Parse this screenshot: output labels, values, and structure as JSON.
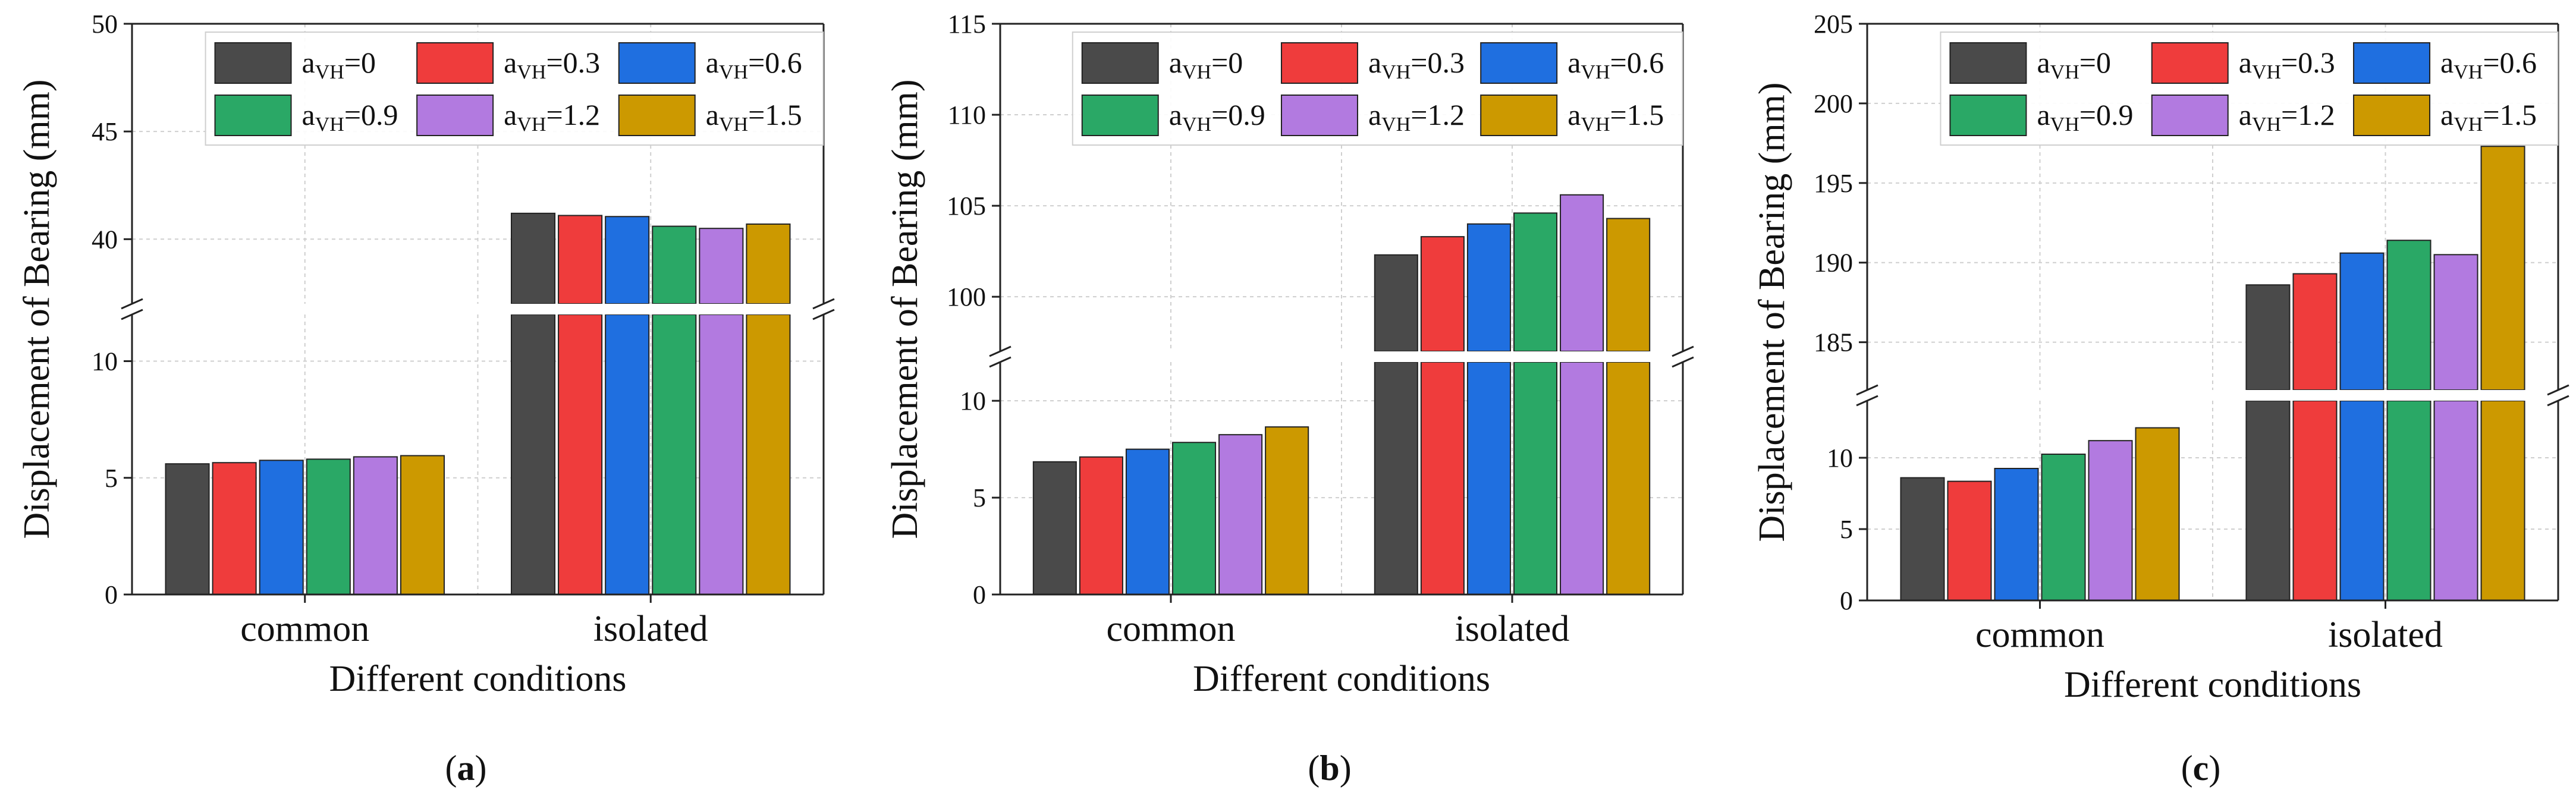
{
  "figure": {
    "panel_letters": [
      "a",
      "b",
      "c"
    ],
    "series_colors": {
      "aVH=0": "#4a4a4a",
      "aVH=0.3": "#ef3c3c",
      "aVH=0.6": "#1f6fe0",
      "aVH=0.9": "#2aa866",
      "aVH=1.2": "#b27ae0",
      "aVH=1.5": "#cc9900"
    }
  },
  "chart_data": [
    {
      "panel": "a",
      "type": "bar",
      "broken_axis": true,
      "xlabel": "Different conditions",
      "ylabel": "Displacement of Bearing (mm)",
      "categories": [
        "common",
        "isolated"
      ],
      "lower_ylim": [
        0,
        12
      ],
      "lower_ticks": [
        "0",
        "5",
        "10"
      ],
      "upper_ylim": [
        37,
        50
      ],
      "upper_ticks": [
        "40",
        "45",
        "50"
      ],
      "grid": true,
      "legend": "top, 3 columns",
      "series": [
        {
          "name": "aVH=0",
          "label_main": "a",
          "label_sub": "VH",
          "label_rest": "=0",
          "color": "#4a4a4a",
          "values": [
            5.6,
            41.2
          ]
        },
        {
          "name": "aVH=0.3",
          "label_main": "a",
          "label_sub": "VH",
          "label_rest": "=0.3",
          "color": "#ef3c3c",
          "values": [
            5.65,
            41.1
          ]
        },
        {
          "name": "aVH=0.6",
          "label_main": "a",
          "label_sub": "VH",
          "label_rest": "=0.6",
          "color": "#1f6fe0",
          "values": [
            5.75,
            41.05
          ]
        },
        {
          "name": "aVH=0.9",
          "label_main": "a",
          "label_sub": "VH",
          "label_rest": "=0.9",
          "color": "#2aa866",
          "values": [
            5.8,
            40.6
          ]
        },
        {
          "name": "aVH=1.2",
          "label_main": "a",
          "label_sub": "VH",
          "label_rest": "=1.2",
          "color": "#b27ae0",
          "values": [
            5.9,
            40.5
          ]
        },
        {
          "name": "aVH=1.5",
          "label_main": "a",
          "label_sub": "VH",
          "label_rest": "=1.5",
          "color": "#cc9900",
          "values": [
            5.95,
            40.7
          ]
        }
      ]
    },
    {
      "panel": "b",
      "type": "bar",
      "broken_axis": true,
      "xlabel": "Different conditions",
      "ylabel": "Displacement of Bearing (mm)",
      "categories": [
        "common",
        "isolated"
      ],
      "lower_ylim": [
        0,
        12
      ],
      "lower_ticks": [
        "0",
        "5",
        "10"
      ],
      "upper_ylim": [
        97,
        115
      ],
      "upper_ticks": [
        "100",
        "105",
        "110",
        "115"
      ],
      "grid": true,
      "legend": "top, 3 columns",
      "series": [
        {
          "name": "aVH=0",
          "label_main": "a",
          "label_sub": "VH",
          "label_rest": "=0",
          "color": "#4a4a4a",
          "values": [
            6.85,
            102.3
          ]
        },
        {
          "name": "aVH=0.3",
          "label_main": "a",
          "label_sub": "VH",
          "label_rest": "=0.3",
          "color": "#ef3c3c",
          "values": [
            7.1,
            103.3
          ]
        },
        {
          "name": "aVH=0.6",
          "label_main": "a",
          "label_sub": "VH",
          "label_rest": "=0.6",
          "color": "#1f6fe0",
          "values": [
            7.5,
            104.0
          ]
        },
        {
          "name": "aVH=0.9",
          "label_main": "a",
          "label_sub": "VH",
          "label_rest": "=0.9",
          "color": "#2aa866",
          "values": [
            7.85,
            104.6
          ]
        },
        {
          "name": "aVH=1.2",
          "label_main": "a",
          "label_sub": "VH",
          "label_rest": "=1.2",
          "color": "#b27ae0",
          "values": [
            8.25,
            105.6
          ]
        },
        {
          "name": "aVH=1.5",
          "label_main": "a",
          "label_sub": "VH",
          "label_rest": "=1.5",
          "color": "#cc9900",
          "values": [
            8.65,
            104.3
          ]
        }
      ]
    },
    {
      "panel": "c",
      "type": "bar",
      "broken_axis": true,
      "xlabel": "Different conditions",
      "ylabel": "Displacement of Bearing (mm)",
      "categories": [
        "common",
        "isolated"
      ],
      "lower_ylim": [
        0,
        14
      ],
      "lower_ticks": [
        "0",
        "5",
        "10"
      ],
      "upper_ylim": [
        182,
        205
      ],
      "upper_ticks": [
        "185",
        "190",
        "195",
        "200",
        "205"
      ],
      "grid": true,
      "legend": "top, 3 columns",
      "series": [
        {
          "name": "aVH=0",
          "label_main": "a",
          "label_sub": "VH",
          "label_rest": "=0",
          "color": "#4a4a4a",
          "values": [
            8.6,
            188.6
          ]
        },
        {
          "name": "aVH=0.3",
          "label_main": "a",
          "label_sub": "VH",
          "label_rest": "=0.3",
          "color": "#ef3c3c",
          "values": [
            8.35,
            189.3
          ]
        },
        {
          "name": "aVH=0.6",
          "label_main": "a",
          "label_sub": "VH",
          "label_rest": "=0.6",
          "color": "#1f6fe0",
          "values": [
            9.25,
            190.6
          ]
        },
        {
          "name": "aVH=0.9",
          "label_main": "a",
          "label_sub": "VH",
          "label_rest": "=0.9",
          "color": "#2aa866",
          "values": [
            10.25,
            191.4
          ]
        },
        {
          "name": "aVH=1.2",
          "label_main": "a",
          "label_sub": "VH",
          "label_rest": "=1.2",
          "color": "#b27ae0",
          "values": [
            11.2,
            190.5
          ]
        },
        {
          "name": "aVH=1.5",
          "label_main": "a",
          "label_sub": "VH",
          "label_rest": "=1.5",
          "color": "#cc9900",
          "values": [
            12.1,
            197.3
          ]
        }
      ]
    }
  ]
}
